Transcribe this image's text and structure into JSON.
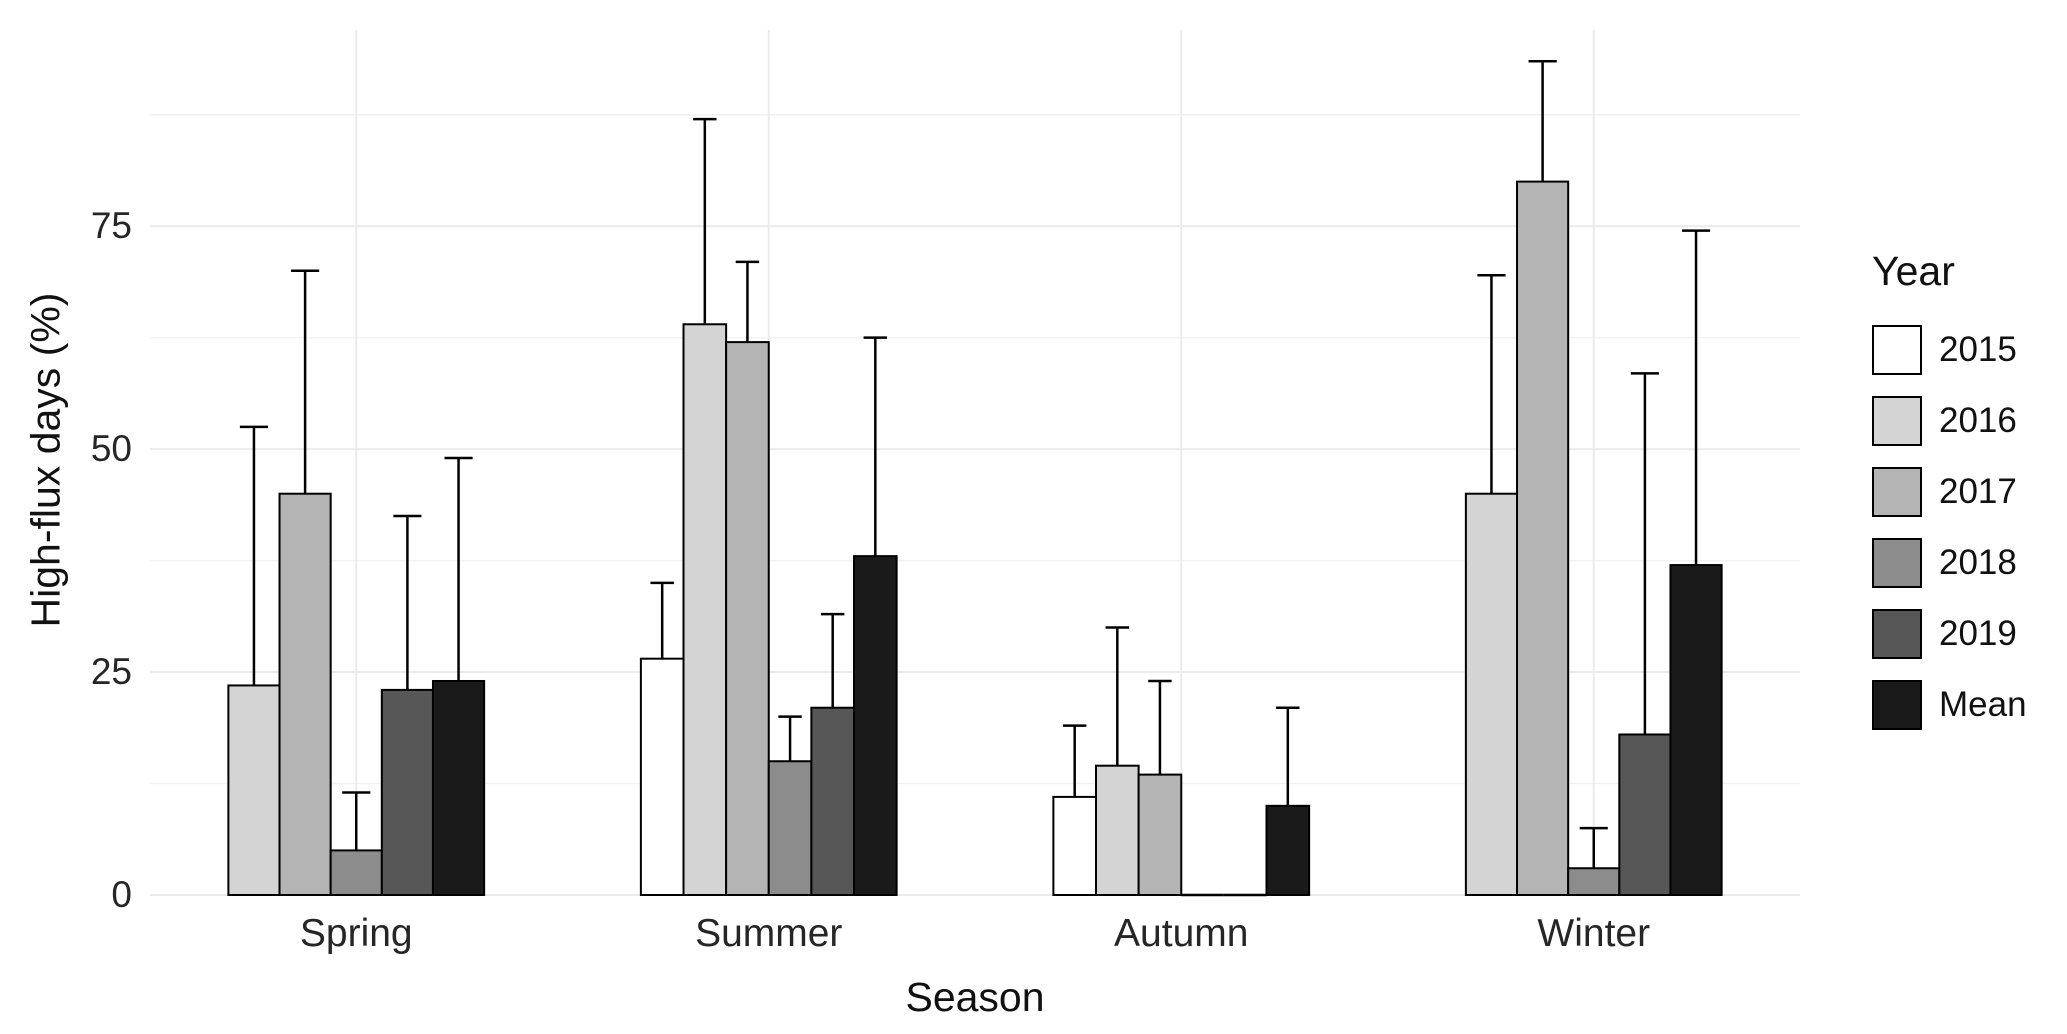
{
  "chart_data": {
    "type": "bar",
    "title": "",
    "xlabel": "Season",
    "ylabel": "High-flux days (%)",
    "ylim": [
      0,
      97
    ],
    "yticks": [
      0,
      25,
      50,
      75
    ],
    "grid": true,
    "legend_title": "Year",
    "legend_position": "right",
    "bar_border_color": "#000000",
    "errorbar_color": "#000000",
    "gridline_color": "#ebebeb",
    "categories": [
      "Spring",
      "Summer",
      "Autumn",
      "Winter"
    ],
    "series": [
      {
        "name": "2015",
        "color": "#FFFFFF",
        "values": [
          null,
          26.5,
          11,
          null
        ],
        "upper": [
          null,
          35,
          19,
          null
        ]
      },
      {
        "name": "2016",
        "color": "#D4D4D4",
        "values": [
          23.5,
          64,
          14.5,
          45
        ],
        "upper": [
          52.5,
          87,
          30,
          69.5
        ]
      },
      {
        "name": "2017",
        "color": "#B4B4B4",
        "values": [
          45,
          62,
          13.5,
          80
        ],
        "upper": [
          70,
          71,
          24,
          93.5
        ]
      },
      {
        "name": "2018",
        "color": "#8C8C8C",
        "values": [
          5,
          15,
          0,
          3
        ],
        "upper": [
          11.5,
          20,
          null,
          7.5
        ]
      },
      {
        "name": "2019",
        "color": "#575757",
        "values": [
          23,
          21,
          0,
          18
        ],
        "upper": [
          42.5,
          31.5,
          null,
          58.5
        ]
      },
      {
        "name": "Mean",
        "color": "#1A1A1A",
        "values": [
          24,
          38,
          10,
          37
        ],
        "upper": [
          49,
          62.5,
          21,
          74.5
        ]
      }
    ]
  }
}
